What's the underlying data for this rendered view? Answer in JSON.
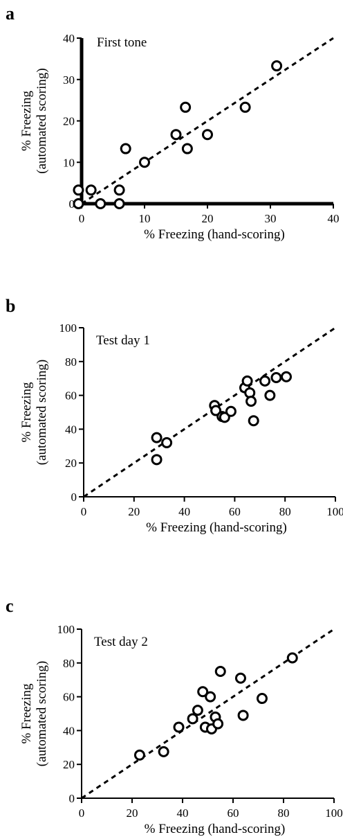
{
  "chart_data": [
    {
      "type": "scatter",
      "panel_label": "a",
      "title": "First tone",
      "xlabel": "% Freezing (hand-scoring)",
      "ylabel": "% Freezing",
      "ylabel2": "(automated scoring)",
      "xlim": [
        0,
        40
      ],
      "ylim": [
        0,
        40
      ],
      "xticks": [
        0,
        10,
        20,
        30,
        40
      ],
      "yticks": [
        0,
        10,
        20,
        30,
        40
      ],
      "fit_line": {
        "x": [
          0,
          40
        ],
        "y": [
          0,
          40
        ],
        "style": "dashed"
      },
      "points": [
        {
          "x": -0.5,
          "y": 0
        },
        {
          "x": -0.5,
          "y": 3.3
        },
        {
          "x": 1.5,
          "y": 3.3
        },
        {
          "x": 3,
          "y": 0
        },
        {
          "x": 6,
          "y": 0
        },
        {
          "x": 6,
          "y": 3.3
        },
        {
          "x": 7,
          "y": 13.3
        },
        {
          "x": 10,
          "y": 10
        },
        {
          "x": 15,
          "y": 16.7
        },
        {
          "x": 16.5,
          "y": 23.3
        },
        {
          "x": 16.8,
          "y": 13.3
        },
        {
          "x": 20,
          "y": 16.7
        },
        {
          "x": 26,
          "y": 23.3
        },
        {
          "x": 31,
          "y": 33.3
        }
      ]
    },
    {
      "type": "scatter",
      "panel_label": "b",
      "title": "Test day 1",
      "xlabel": "% Freezing (hand-scoring)",
      "ylabel": "% Freezing",
      "ylabel2": "(automated scoring)",
      "xlim": [
        0,
        100
      ],
      "ylim": [
        0,
        100
      ],
      "xticks": [
        0,
        20,
        40,
        60,
        80,
        100
      ],
      "yticks": [
        0,
        20,
        40,
        60,
        80,
        100
      ],
      "fit_line": {
        "x": [
          0,
          100
        ],
        "y": [
          0,
          100
        ],
        "style": "dashed"
      },
      "points": [
        {
          "x": 29,
          "y": 35
        },
        {
          "x": 29,
          "y": 22
        },
        {
          "x": 33,
          "y": 32
        },
        {
          "x": 52,
          "y": 54
        },
        {
          "x": 52.5,
          "y": 51
        },
        {
          "x": 55,
          "y": 47.5
        },
        {
          "x": 56,
          "y": 47
        },
        {
          "x": 58.5,
          "y": 50.5
        },
        {
          "x": 64,
          "y": 64.5
        },
        {
          "x": 65,
          "y": 68.5
        },
        {
          "x": 66,
          "y": 61.5
        },
        {
          "x": 66.5,
          "y": 56.5
        },
        {
          "x": 67.5,
          "y": 45
        },
        {
          "x": 72,
          "y": 68.5
        },
        {
          "x": 74,
          "y": 60
        },
        {
          "x": 76.5,
          "y": 70.5
        },
        {
          "x": 80.5,
          "y": 71
        }
      ]
    },
    {
      "type": "scatter",
      "panel_label": "c",
      "title": "Test day 2",
      "xlabel": "% Freezing (hand-scoring)",
      "ylabel": "% Freezing",
      "ylabel2": "(automated scoring)",
      "xlim": [
        0,
        100
      ],
      "ylim": [
        0,
        100
      ],
      "xticks": [
        0,
        20,
        40,
        60,
        80,
        100
      ],
      "yticks": [
        0,
        20,
        40,
        60,
        80,
        100
      ],
      "fit_line": {
        "x": [
          0,
          100
        ],
        "y": [
          0,
          100
        ],
        "style": "dashed"
      },
      "points": [
        {
          "x": 23,
          "y": 25.5
        },
        {
          "x": 32.5,
          "y": 27.5
        },
        {
          "x": 38.5,
          "y": 42
        },
        {
          "x": 44,
          "y": 47
        },
        {
          "x": 46,
          "y": 52
        },
        {
          "x": 48,
          "y": 63
        },
        {
          "x": 49,
          "y": 42
        },
        {
          "x": 51,
          "y": 60
        },
        {
          "x": 51.5,
          "y": 41
        },
        {
          "x": 53,
          "y": 48
        },
        {
          "x": 54,
          "y": 44
        },
        {
          "x": 55,
          "y": 75
        },
        {
          "x": 63,
          "y": 71
        },
        {
          "x": 64,
          "y": 49
        },
        {
          "x": 71.5,
          "y": 59
        },
        {
          "x": 83.5,
          "y": 83
        }
      ]
    }
  ]
}
